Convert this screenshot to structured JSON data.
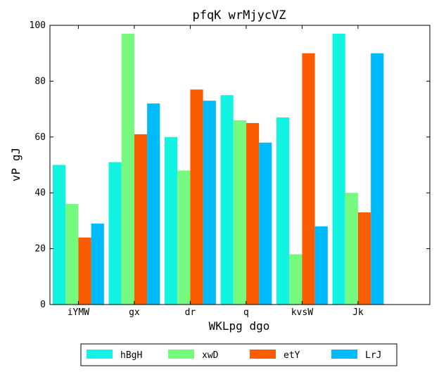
{
  "chart_data": {
    "type": "bar",
    "title": "pfqK wrMjycVZ",
    "xlabel": "WKLpg dgo",
    "ylabel": "vP gJ",
    "categories": [
      "iYMW",
      "gx",
      "dr",
      "q",
      "kvsW",
      "Jk"
    ],
    "ylim": [
      0,
      100
    ],
    "yticks": [
      0,
      20,
      40,
      60,
      80,
      100
    ],
    "grid": false,
    "legend_position": "bottom-center",
    "series": [
      {
        "name": "hBgH",
        "color": "#12f3e1",
        "values": [
          50,
          51,
          60,
          75,
          67,
          97
        ]
      },
      {
        "name": "xwD",
        "color": "#75f97e",
        "values": [
          36,
          97,
          48,
          66,
          18,
          40
        ]
      },
      {
        "name": "etY",
        "color": "#fc5c00",
        "values": [
          24,
          61,
          77,
          65,
          90,
          33
        ]
      },
      {
        "name": "LrJ",
        "color": "#00bbfc",
        "values": [
          29,
          72,
          73,
          58,
          28,
          90
        ]
      }
    ]
  }
}
